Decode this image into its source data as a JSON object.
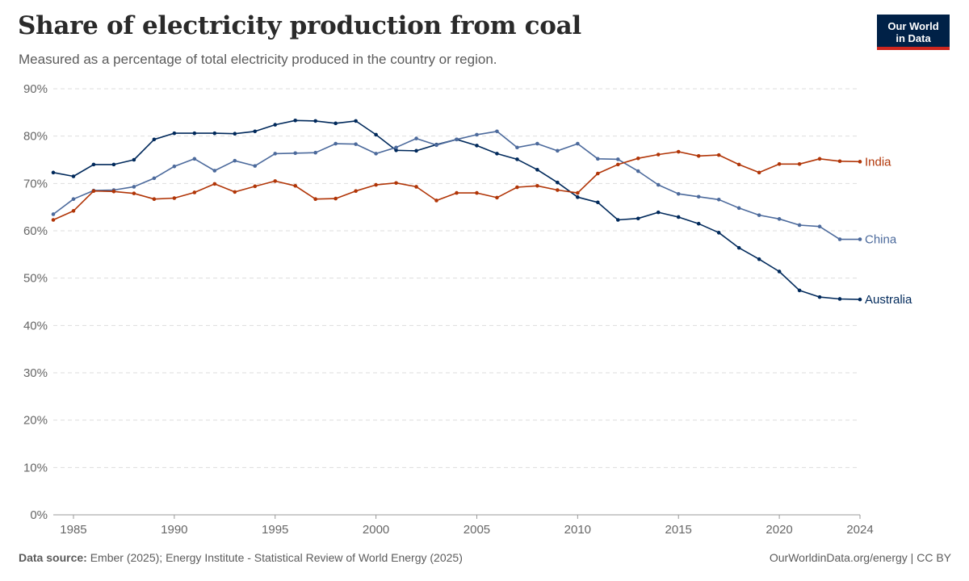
{
  "header": {
    "title": "Share of electricity production from coal",
    "subtitle": "Measured as a percentage of total electricity produced in the country or region."
  },
  "logo": {
    "line1": "Our World",
    "line2": "in Data",
    "bg_color": "#002147",
    "accent_color": "#ce261e"
  },
  "footer": {
    "source_label": "Data source:",
    "source_text": "Ember (2025); Energy Institute - Statistical Review of World Energy (2025)",
    "right_text": "OurWorldinData.org/energy | CC BY"
  },
  "chart_data": {
    "type": "line",
    "x": [
      1984,
      1985,
      1986,
      1987,
      1988,
      1989,
      1990,
      1991,
      1992,
      1993,
      1994,
      1995,
      1996,
      1997,
      1998,
      1999,
      2000,
      2001,
      2002,
      2003,
      2004,
      2005,
      2006,
      2007,
      2008,
      2009,
      2010,
      2011,
      2012,
      2013,
      2014,
      2015,
      2016,
      2017,
      2018,
      2019,
      2020,
      2021,
      2022,
      2023,
      2024
    ],
    "xlim": [
      1984,
      2024
    ],
    "ylim": [
      0,
      90
    ],
    "x_ticks": [
      1985,
      1990,
      1995,
      2000,
      2005,
      2010,
      2015,
      2020,
      2024
    ],
    "y_ticks": [
      0,
      10,
      20,
      30,
      40,
      50,
      60,
      70,
      80,
      90
    ],
    "y_tick_labels": [
      "0%",
      "10%",
      "20%",
      "30%",
      "40%",
      "50%",
      "60%",
      "70%",
      "80%",
      "90%"
    ],
    "grid": "horizontal-dashed",
    "legend": "inline-right",
    "series": [
      {
        "name": "Australia",
        "color": "#00295b",
        "values": [
          72.3,
          71.5,
          74.0,
          74.0,
          75.0,
          79.3,
          80.6,
          80.6,
          80.6,
          80.5,
          81.0,
          82.4,
          83.3,
          83.2,
          82.7,
          83.2,
          80.3,
          77.0,
          76.9,
          78.2,
          79.3,
          78.0,
          76.3,
          75.1,
          72.9,
          70.2,
          67.1,
          66.0,
          62.3,
          62.6,
          63.9,
          62.9,
          61.5,
          59.6,
          56.4,
          54.0,
          51.4,
          47.4,
          46.0,
          45.6,
          45.5
        ]
      },
      {
        "name": "China",
        "color": "#4c6a9c",
        "values": [
          63.5,
          66.7,
          68.5,
          68.6,
          69.3,
          71.1,
          73.6,
          75.2,
          72.7,
          74.8,
          73.7,
          76.3,
          76.4,
          76.5,
          78.4,
          78.3,
          76.3,
          77.6,
          79.5,
          78.1,
          79.3,
          80.3,
          81.0,
          77.6,
          78.4,
          76.9,
          78.4,
          75.2,
          75.1,
          72.6,
          69.7,
          67.8,
          67.2,
          66.6,
          64.8,
          63.3,
          62.5,
          61.2,
          60.9,
          58.2,
          58.2
        ]
      },
      {
        "name": "India",
        "color": "#b13507",
        "values": [
          62.3,
          64.2,
          68.4,
          68.3,
          67.9,
          66.7,
          66.9,
          68.1,
          69.9,
          68.2,
          69.4,
          70.5,
          69.5,
          66.7,
          66.8,
          68.4,
          69.7,
          70.1,
          69.3,
          66.4,
          68.0,
          68.0,
          67.0,
          69.2,
          69.5,
          68.6,
          68.0,
          72.1,
          74.0,
          75.3,
          76.1,
          76.7,
          75.8,
          76.0,
          74.0,
          72.3,
          74.1,
          74.1,
          75.2,
          74.7,
          74.6
        ]
      }
    ]
  }
}
